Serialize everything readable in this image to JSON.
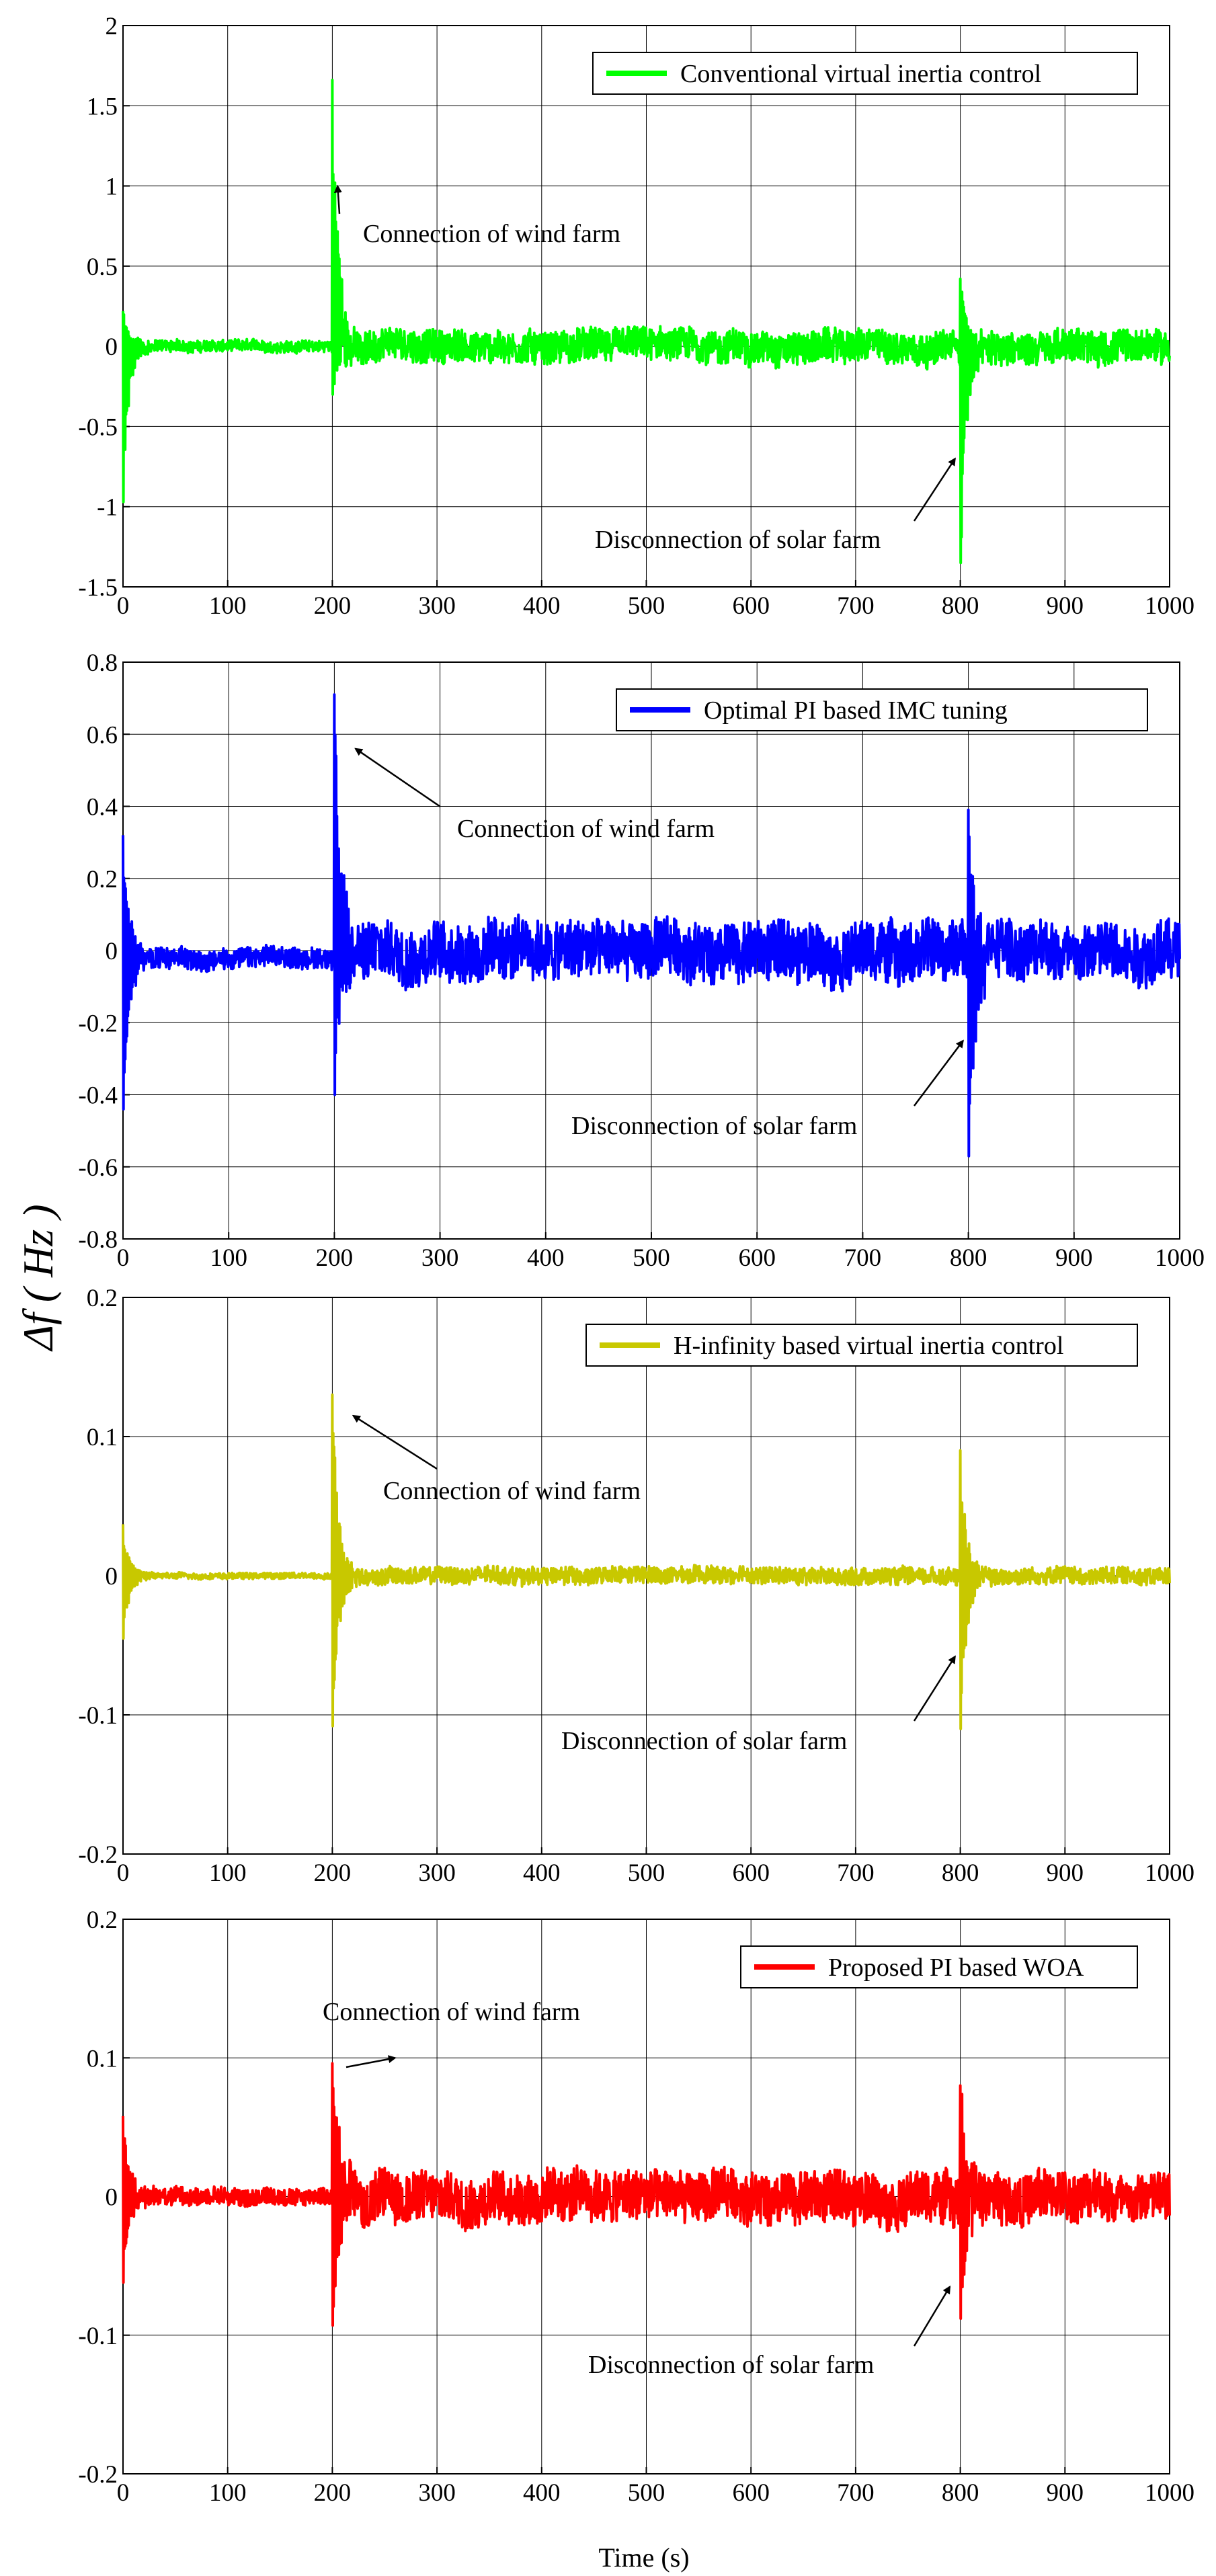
{
  "figure": {
    "ylabel": "Δf ( Hz )",
    "xlabel": "Time (s)"
  },
  "chart_data": [
    {
      "type": "line",
      "legend": "Conventional virtual inertia control",
      "legend_position": "top-right",
      "color": "#00ff00",
      "xlim": [
        0,
        1000
      ],
      "ylim": [
        -1.5,
        2
      ],
      "grid": true,
      "x_ticks": [
        "0",
        "100",
        "200",
        "300",
        "400",
        "500",
        "600",
        "700",
        "800",
        "900",
        "1000"
      ],
      "y_ticks": [
        "2",
        "1.5",
        "1",
        "0.5",
        "0",
        "-0.5",
        "-1",
        "-1.5"
      ],
      "noise_amplitude": 0.1,
      "baseline_start": 0.0,
      "events": [
        {
          "t": 0,
          "peak": 0.22,
          "trough": -0.97
        },
        {
          "t": 200,
          "peak": 1.66,
          "trough": -0.3
        },
        {
          "t": 800,
          "peak": 0.42,
          "trough": -1.35
        }
      ],
      "annotations": [
        {
          "text": "Connection of wind farm",
          "target_x": 205,
          "target_y": 1.0
        },
        {
          "text": "Disconnection of solar farm",
          "target_x": 795,
          "target_y": -0.7
        }
      ]
    },
    {
      "type": "line",
      "legend": "Optimal PI based IMC tuning",
      "legend_position": "top-right",
      "color": "#0000ff",
      "xlim": [
        0,
        1000
      ],
      "ylim": [
        -0.8,
        0.8
      ],
      "grid": true,
      "x_ticks": [
        "0",
        "100",
        "200",
        "300",
        "400",
        "500",
        "600",
        "700",
        "800",
        "900",
        "1000"
      ],
      "y_ticks": [
        "0.8",
        "0.6",
        "0.4",
        "0.2",
        "0",
        "-0.2",
        "-0.4",
        "-0.6",
        "-0.8"
      ],
      "noise_amplitude": 0.08,
      "baseline_start": -0.02,
      "events": [
        {
          "t": 0,
          "peak": 0.32,
          "trough": -0.44
        },
        {
          "t": 200,
          "peak": 0.71,
          "trough": -0.4
        },
        {
          "t": 800,
          "peak": 0.39,
          "trough": -0.57
        }
      ],
      "annotations": [
        {
          "text": "Connection of wind farm",
          "target_x": 220,
          "target_y": 0.56
        },
        {
          "text": "Disconnection of solar farm",
          "target_x": 795,
          "target_y": -0.25
        }
      ]
    },
    {
      "type": "line",
      "legend": "H-infinity based virtual inertia control",
      "legend_position": "top-right",
      "color": "#c8c800",
      "xlim": [
        0,
        1000
      ],
      "ylim": [
        -0.2,
        0.2
      ],
      "grid": true,
      "x_ticks": [
        "0",
        "100",
        "200",
        "300",
        "400",
        "500",
        "600",
        "700",
        "800",
        "900",
        "1000"
      ],
      "y_ticks": [
        "0.2",
        "0.1",
        "0",
        "-0.1",
        "-0.2"
      ],
      "noise_amplitude": 0.006,
      "baseline_start": 0.0,
      "events": [
        {
          "t": 0,
          "peak": 0.037,
          "trough": -0.045
        },
        {
          "t": 200,
          "peak": 0.13,
          "trough": -0.108
        },
        {
          "t": 800,
          "peak": 0.09,
          "trough": -0.11
        }
      ],
      "annotations": [
        {
          "text": "Connection of wind farm",
          "target_x": 220,
          "target_y": 0.115
        },
        {
          "text": "Disconnection of solar farm",
          "target_x": 795,
          "target_y": -0.058
        }
      ]
    },
    {
      "type": "line",
      "legend": "Proposed PI based WOA",
      "legend_position": "top-right",
      "color": "#ff0000",
      "xlim": [
        0,
        1000
      ],
      "ylim": [
        -0.2,
        0.2
      ],
      "grid": true,
      "x_ticks": [
        "0",
        "100",
        "200",
        "300",
        "400",
        "500",
        "600",
        "700",
        "800",
        "900",
        "1000"
      ],
      "y_ticks": [
        "0.2",
        "0.1",
        "0",
        "-0.1",
        "-0.2"
      ],
      "noise_amplitude": 0.018,
      "baseline_start": 0.0,
      "events": [
        {
          "t": 0,
          "peak": 0.058,
          "trough": -0.062
        },
        {
          "t": 200,
          "peak": 0.096,
          "trough": -0.093
        },
        {
          "t": 800,
          "peak": 0.08,
          "trough": -0.088
        }
      ],
      "annotations": [
        {
          "text": "Connection of wind farm",
          "target_x": 260,
          "target_y": 0.1
        },
        {
          "text": "Disconnection of solar farm",
          "target_x": 790,
          "target_y": -0.065
        }
      ]
    }
  ]
}
